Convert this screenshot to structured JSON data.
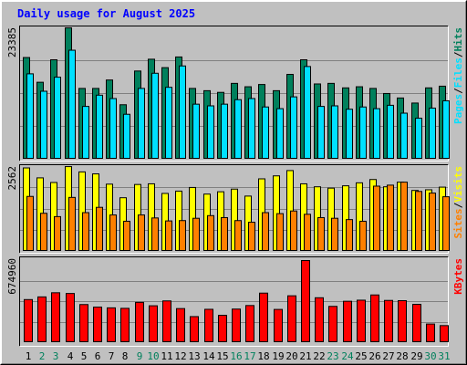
{
  "title": "Daily usage for August 2025",
  "colors": {
    "background": "#c0c0c0",
    "title": "#0000ff",
    "grid": "#808080",
    "hits": "#00805c",
    "files": "#00e0ff",
    "pages": "#00e0ff",
    "visits": "#ffff00",
    "sites": "#ff8000",
    "kbytes": "#ff0000",
    "weekday_label": "#000000",
    "weekend_label": "#00805c"
  },
  "chart_data": [
    {
      "type": "bar",
      "panel": "top",
      "categories": [
        "1",
        "2",
        "3",
        "4",
        "5",
        "6",
        "7",
        "8",
        "9",
        "10",
        "11",
        "12",
        "13",
        "14",
        "15",
        "16",
        "17",
        "18",
        "19",
        "20",
        "21",
        "22",
        "23",
        "24",
        "25",
        "26",
        "27",
        "28",
        "29",
        "30",
        "31"
      ],
      "weekend_days": [
        "2",
        "3",
        "9",
        "10",
        "16",
        "17",
        "23",
        "24",
        "30",
        "31"
      ],
      "ymax_label": "23385",
      "ylim": [
        0,
        23385
      ],
      "axis_legend": [
        {
          "text": "Pages",
          "color": "#00e0ff"
        },
        {
          "text": "/",
          "color": "#000000"
        },
        {
          "text": "Files",
          "color": "#00e0ff"
        },
        {
          "text": "/",
          "color": "#000000"
        },
        {
          "text": "Hits",
          "color": "#00805c"
        }
      ],
      "series": [
        {
          "name": "Hits",
          "values": [
            18100,
            13700,
            17700,
            23385,
            12600,
            12600,
            14100,
            9700,
            15700,
            17800,
            16300,
            18200,
            12600,
            12200,
            11900,
            13500,
            12900,
            13300,
            12200,
            15100,
            17700,
            13400,
            13500,
            12700,
            12900,
            12600,
            11700,
            10900,
            10000,
            12700,
            13000
          ]
        },
        {
          "name": "Files",
          "values": [
            15200,
            12100,
            14600,
            19400,
            9400,
            11400,
            10800,
            8000,
            12600,
            15300,
            12800,
            16600,
            9800,
            9500,
            9800,
            10600,
            10800,
            9300,
            9000,
            11100,
            16500,
            9400,
            9500,
            8900,
            9300,
            9000,
            9600,
            8200,
            7300,
            9100,
            10400
          ]
        },
        {
          "name": "Pages",
          "values": [
            0,
            0,
            0,
            0,
            0,
            0,
            0,
            0,
            0,
            0,
            0,
            0,
            0,
            0,
            0,
            0,
            0,
            0,
            0,
            0,
            0,
            0,
            0,
            0,
            0,
            0,
            0,
            0,
            0,
            0,
            0
          ]
        }
      ]
    },
    {
      "type": "bar",
      "panel": "middle",
      "categories": [
        "1",
        "2",
        "3",
        "4",
        "5",
        "6",
        "7",
        "8",
        "9",
        "10",
        "11",
        "12",
        "13",
        "14",
        "15",
        "16",
        "17",
        "18",
        "19",
        "20",
        "21",
        "22",
        "23",
        "24",
        "25",
        "26",
        "27",
        "28",
        "29",
        "30",
        "31"
      ],
      "ymax_label": "2562",
      "ylim": [
        0,
        2562
      ],
      "axis_legend": [
        {
          "text": "Sites",
          "color": "#ff8000"
        },
        {
          "text": "/",
          "color": "#000000"
        },
        {
          "text": "Visits",
          "color": "#ffff00"
        }
      ],
      "series": [
        {
          "name": "Visits",
          "values": [
            2520,
            2220,
            2080,
            2560,
            2400,
            2340,
            2030,
            1620,
            2020,
            2040,
            1750,
            1820,
            1930,
            1730,
            1800,
            1880,
            1670,
            2190,
            2280,
            2440,
            2040,
            1950,
            1910,
            1980,
            2070,
            2170,
            1950,
            2090,
            1840,
            1860,
            1940
          ]
        },
        {
          "name": "Sites",
          "values": [
            1660,
            1150,
            1050,
            1630,
            1170,
            1330,
            1100,
            910,
            1100,
            1010,
            920,
            930,
            1000,
            1080,
            1020,
            930,
            880,
            1170,
            1140,
            1220,
            1120,
            1020,
            1000,
            960,
            910,
            1970,
            2000,
            2090,
            1810,
            1760,
            1650
          ]
        }
      ]
    },
    {
      "type": "bar",
      "panel": "bottom",
      "categories": [
        "1",
        "2",
        "3",
        "4",
        "5",
        "6",
        "7",
        "8",
        "9",
        "10",
        "11",
        "12",
        "13",
        "14",
        "15",
        "16",
        "17",
        "18",
        "19",
        "20",
        "21",
        "22",
        "23",
        "24",
        "25",
        "26",
        "27",
        "28",
        "29",
        "30",
        "31"
      ],
      "ymax_label": "674960",
      "ylim": [
        0,
        674960
      ],
      "axis_legend": [
        {
          "text": "KBytes",
          "color": "#ff0000"
        }
      ],
      "series": [
        {
          "name": "KBytes",
          "values": [
            354000,
            376000,
            410000,
            404000,
            313000,
            292000,
            286000,
            282000,
            331000,
            303000,
            343000,
            280000,
            214000,
            274000,
            225000,
            276000,
            305000,
            407000,
            273000,
            385000,
            674960,
            369000,
            298000,
            340000,
            349000,
            392000,
            347000,
            345000,
            315000,
            153000,
            140000
          ]
        }
      ]
    }
  ]
}
